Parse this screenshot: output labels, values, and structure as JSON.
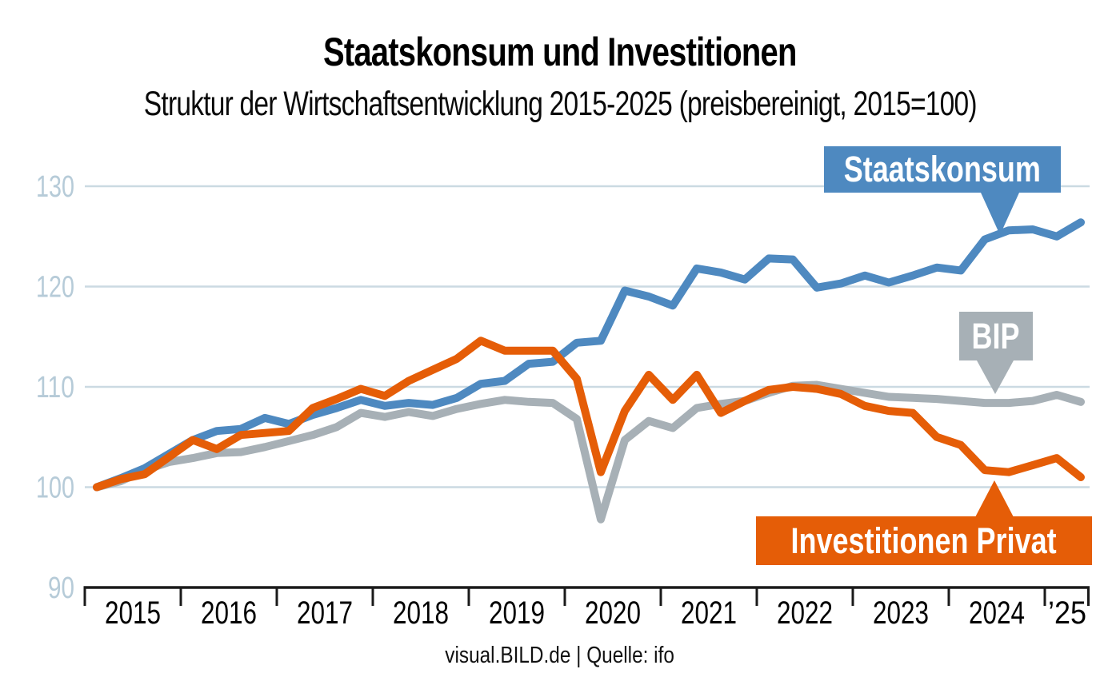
{
  "title": "Staatskonsum und Investitionen",
  "subtitle": "Struktur der Wirtschaftsentwicklung 2015-2025 (preisbereinigt, 2015=100)",
  "footer": {
    "source": "visual.BILD.de | Quelle: ifo"
  },
  "callouts": [
    {
      "id": "staatskonsum",
      "label": "Staatskonsum",
      "color": "#4e89c0",
      "pointer": "down"
    },
    {
      "id": "bip",
      "label": "BIP",
      "color": "#a7b0b6",
      "pointer": "down"
    },
    {
      "id": "investitionen-privat",
      "label": "Investitionen Privat",
      "color": "#e55d07",
      "pointer": "up"
    }
  ],
  "style_colors": {
    "grid": "#cbdae2",
    "axis": "#1a1a1a",
    "y_tick_label": "#b6cbd8",
    "x_tick_label": "#000000"
  },
  "chart_data": {
    "type": "line",
    "title": "Staatskonsum und Investitionen",
    "subtitle": "Struktur der Wirtschaftsentwicklung 2015-2025 (preisbereinigt, 2015=100)",
    "x_axis": {
      "unit": "quarter",
      "start": "2015-Q1",
      "end": "2025-Q2",
      "year_labels": [
        "2015",
        "2016",
        "2017",
        "2018",
        "2019",
        "2020",
        "2021",
        "2022",
        "2023",
        "2024",
        "’25"
      ]
    },
    "y_axis": {
      "ticks": [
        90,
        100,
        110,
        120,
        130
      ],
      "min": 90,
      "max": 130,
      "grid": true,
      "reference": "2015=100"
    },
    "legend_position": "labels-on-chart",
    "series": [
      {
        "name": "BIP",
        "color": "#a7b0b6",
        "values": [
          100.0,
          100.6,
          101.7,
          102.5,
          102.9,
          103.4,
          103.5,
          104.0,
          104.6,
          105.2,
          106.0,
          107.4,
          107.0,
          107.5,
          107.1,
          107.8,
          108.3,
          108.7,
          108.5,
          108.4,
          106.8,
          96.8,
          104.7,
          106.6,
          105.9,
          107.9,
          108.3,
          108.6,
          109.4,
          110.1,
          110.2,
          109.8,
          109.4,
          109.0,
          108.9,
          108.8,
          108.6,
          108.4,
          108.4,
          108.6,
          109.2,
          108.5
        ]
      },
      {
        "name": "Staatskonsum",
        "color": "#4e89c0",
        "values": [
          100.0,
          100.9,
          101.9,
          103.3,
          104.7,
          105.6,
          105.8,
          106.9,
          106.3,
          107.2,
          107.9,
          108.7,
          108.1,
          108.4,
          108.2,
          108.9,
          110.3,
          110.6,
          112.3,
          112.5,
          114.4,
          114.6,
          119.6,
          119.0,
          118.1,
          121.8,
          121.4,
          120.7,
          122.8,
          122.7,
          119.9,
          120.3,
          121.1,
          120.4,
          121.1,
          121.9,
          121.6,
          124.7,
          125.6,
          125.7,
          125.0,
          126.4
        ]
      },
      {
        "name": "Investitionen Privat",
        "color": "#e55d07",
        "values": [
          100.0,
          100.8,
          101.3,
          103.0,
          104.7,
          103.8,
          105.2,
          105.4,
          105.6,
          107.9,
          108.8,
          109.8,
          109.1,
          110.6,
          111.7,
          112.8,
          114.6,
          113.6,
          113.6,
          113.6,
          110.8,
          101.5,
          107.6,
          111.2,
          108.7,
          111.2,
          107.4,
          108.6,
          109.7,
          110.0,
          109.8,
          109.3,
          108.1,
          107.6,
          107.4,
          105.0,
          104.2,
          101.7,
          101.5,
          102.2,
          102.9,
          101.0
        ]
      }
    ],
    "source": "visual.BILD.de | Quelle: ifo"
  }
}
